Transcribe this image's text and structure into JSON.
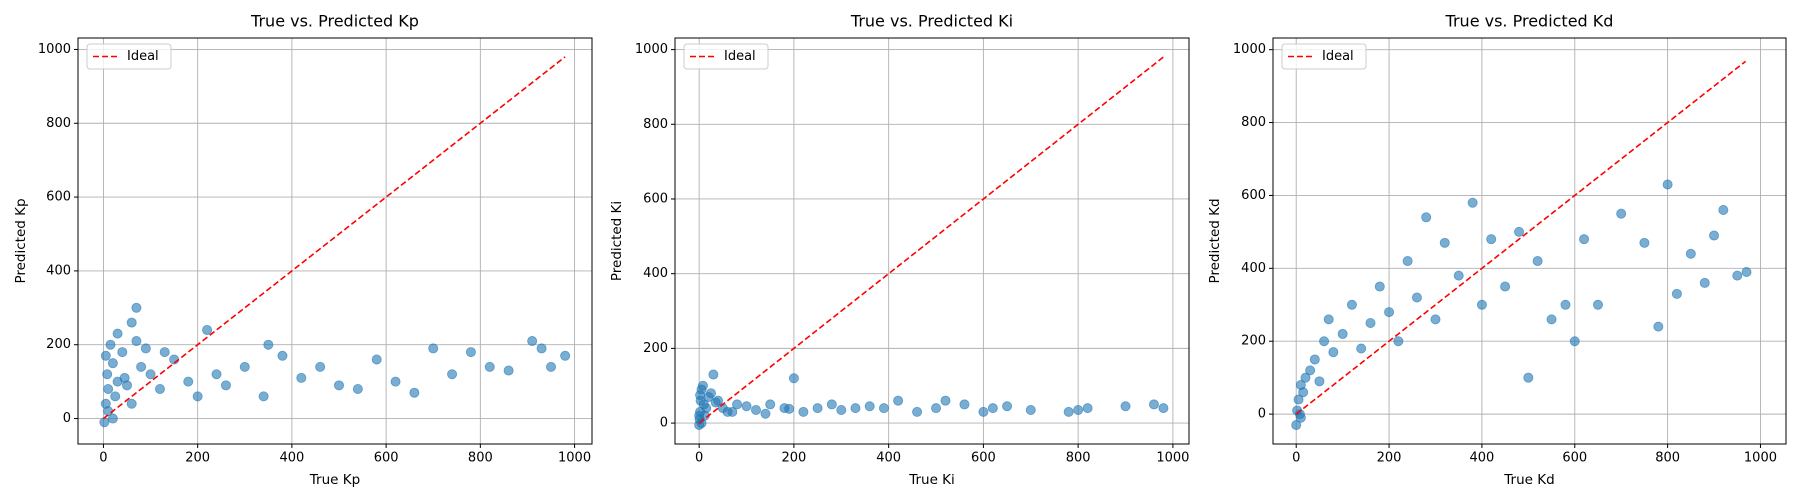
{
  "chart_data": [
    {
      "type": "scatter",
      "title": "True vs. Predicted Kp",
      "x_label": "True Kp",
      "y_label": "Predicted Kp",
      "xlim": [
        -54,
        1037
      ],
      "ylim": [
        -69,
        1031
      ],
      "xticks": [
        0,
        200,
        400,
        600,
        800,
        1000
      ],
      "yticks": [
        0,
        200,
        400,
        600,
        800,
        1000
      ],
      "grid": true,
      "legend": "upper left",
      "series": [
        {
          "color": "#1f77b4",
          "opacity": 0.6,
          "x": [
            2,
            5,
            8,
            10,
            15,
            20,
            25,
            30,
            40,
            50,
            60,
            70,
            80,
            100,
            120,
            150,
            180,
            200,
            30,
            60,
            10,
            5,
            45,
            90,
            220,
            260,
            300,
            340,
            380,
            420,
            460,
            500,
            540,
            580,
            620,
            660,
            700,
            740,
            780,
            820,
            860,
            910,
            930,
            950,
            980,
            70,
            20,
            130,
            240,
            350
          ],
          "values": [
            -10,
            40,
            120,
            80,
            200,
            150,
            60,
            100,
            180,
            90,
            260,
            300,
            140,
            120,
            80,
            160,
            100,
            60,
            230,
            40,
            20,
            170,
            110,
            190,
            240,
            90,
            140,
            60,
            170,
            110,
            140,
            90,
            80,
            160,
            100,
            70,
            190,
            120,
            180,
            140,
            130,
            210,
            190,
            140,
            170,
            210,
            0,
            180,
            120,
            200
          ]
        },
        {
          "type": "line",
          "name": "Ideal",
          "color": "#ff0000",
          "style": "dashed",
          "x": [
            0,
            980
          ],
          "values": [
            0,
            980
          ]
        }
      ]
    },
    {
      "type": "scatter",
      "title": "True vs. Predicted Ki",
      "x_label": "True Ki",
      "y_label": "Predicted Ki",
      "xlim": [
        -51,
        1034
      ],
      "ylim": [
        -56,
        1031
      ],
      "xticks": [
        0,
        200,
        400,
        600,
        800,
        1000
      ],
      "yticks": [
        0,
        200,
        400,
        600,
        800,
        1000
      ],
      "grid": true,
      "legend": "upper left",
      "series": [
        {
          "color": "#1f77b4",
          "opacity": 0.6,
          "x": [
            0,
            1,
            2,
            3,
            5,
            8,
            10,
            12,
            15,
            20,
            25,
            30,
            40,
            50,
            60,
            80,
            100,
            120,
            150,
            180,
            200,
            220,
            250,
            280,
            300,
            330,
            360,
            390,
            420,
            460,
            500,
            520,
            560,
            600,
            620,
            650,
            700,
            780,
            800,
            820,
            900,
            960,
            980,
            5,
            2,
            0,
            35,
            70,
            140,
            190
          ],
          "values": [
            -5,
            10,
            30,
            60,
            90,
            100,
            50,
            20,
            40,
            70,
            80,
            130,
            60,
            40,
            30,
            50,
            45,
            35,
            50,
            40,
            120,
            30,
            40,
            50,
            35,
            40,
            45,
            40,
            60,
            30,
            40,
            60,
            50,
            30,
            40,
            45,
            35,
            30,
            35,
            40,
            45,
            50,
            40,
            0,
            75,
            20,
            55,
            30,
            25,
            38
          ]
        },
        {
          "type": "line",
          "name": "Ideal",
          "color": "#ff0000",
          "style": "dashed",
          "x": [
            0,
            980
          ],
          "values": [
            0,
            980
          ]
        }
      ]
    },
    {
      "type": "scatter",
      "title": "True vs. Predicted Kd",
      "x_label": "True Kd",
      "y_label": "Predicted Kd",
      "xlim": [
        -50,
        1055
      ],
      "ylim": [
        -82,
        1032
      ],
      "xticks": [
        0,
        200,
        400,
        600,
        800,
        1000
      ],
      "yticks": [
        0,
        200,
        400,
        600,
        800,
        1000
      ],
      "grid": true,
      "legend": "upper left",
      "series": [
        {
          "color": "#1f77b4",
          "opacity": 0.6,
          "x": [
            0,
            2,
            5,
            8,
            10,
            15,
            20,
            30,
            40,
            50,
            60,
            80,
            100,
            120,
            140,
            160,
            180,
            200,
            220,
            240,
            260,
            280,
            300,
            320,
            350,
            380,
            400,
            420,
            450,
            480,
            500,
            520,
            550,
            580,
            600,
            620,
            650,
            700,
            750,
            780,
            800,
            820,
            850,
            880,
            900,
            920,
            950,
            970,
            10,
            70
          ],
          "values": [
            -30,
            10,
            40,
            0,
            80,
            60,
            100,
            120,
            150,
            90,
            200,
            170,
            220,
            300,
            180,
            250,
            350,
            280,
            200,
            420,
            320,
            540,
            260,
            470,
            380,
            580,
            300,
            480,
            350,
            500,
            100,
            420,
            260,
            300,
            200,
            480,
            300,
            550,
            470,
            240,
            630,
            330,
            440,
            360,
            490,
            560,
            380,
            390,
            -10,
            260
          ]
        },
        {
          "type": "line",
          "name": "Ideal",
          "color": "#ff0000",
          "style": "dashed",
          "x": [
            0,
            968
          ],
          "values": [
            0,
            968
          ]
        }
      ]
    }
  ]
}
